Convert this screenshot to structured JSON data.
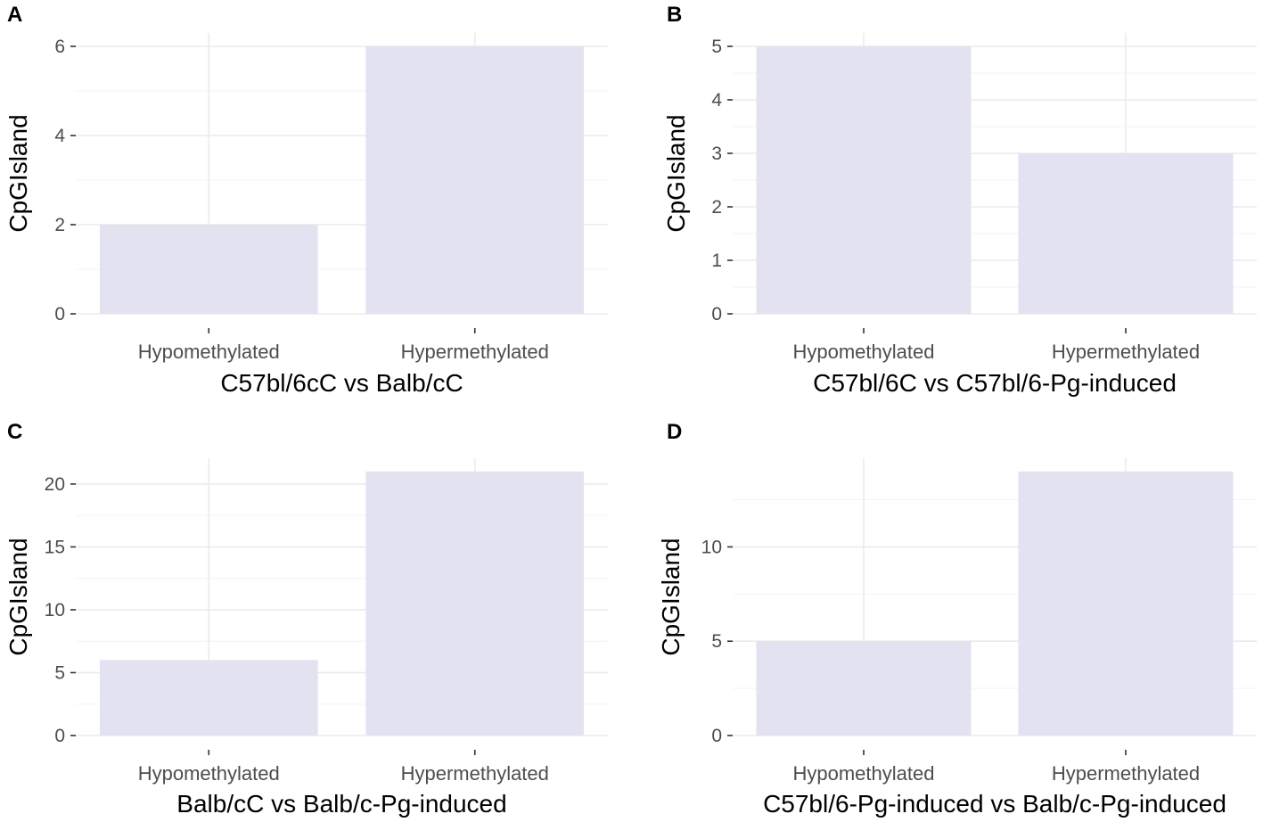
{
  "chart_data": [
    {
      "panel": "A",
      "type": "bar",
      "categories": [
        "Hypomethylated",
        "Hypermethylated"
      ],
      "values": [
        2,
        6
      ],
      "xlabel": "C57bl/6cC vs Balb/cC",
      "ylabel": "CpGIsland",
      "ylim": [
        0,
        6.3
      ],
      "yticks": [
        0,
        2,
        4,
        6
      ],
      "bar_color": "#e3e2f1",
      "grid": true
    },
    {
      "panel": "B",
      "type": "bar",
      "categories": [
        "Hypomethylated",
        "Hypermethylated"
      ],
      "values": [
        5,
        3
      ],
      "xlabel": "C57bl/6C vs C57bl/6-Pg-induced",
      "ylabel": "CpGIsland",
      "ylim": [
        0,
        5.25
      ],
      "yticks": [
        0,
        1,
        2,
        3,
        4,
        5
      ],
      "bar_color": "#e3e2f1",
      "grid": true
    },
    {
      "panel": "C",
      "type": "bar",
      "categories": [
        "Hypomethylated",
        "Hypermethylated"
      ],
      "values": [
        6,
        21
      ],
      "xlabel": "Balb/cC vs Balb/c-Pg-induced",
      "ylabel": "CpGIsland",
      "ylim": [
        0,
        22.05
      ],
      "yticks": [
        0,
        5,
        10,
        15,
        20
      ],
      "bar_color": "#e3e2f1",
      "grid": true
    },
    {
      "panel": "D",
      "type": "bar",
      "categories": [
        "Hypomethylated",
        "Hypermethylated"
      ],
      "values": [
        5,
        14
      ],
      "xlabel": "C57bl/6-Pg-induced vs Balb/c-Pg-induced",
      "ylabel": "CpGIsland",
      "ylim": [
        0,
        14.7
      ],
      "yticks": [
        0,
        5,
        10
      ],
      "bar_color": "#e3e2f1",
      "grid": true
    }
  ]
}
